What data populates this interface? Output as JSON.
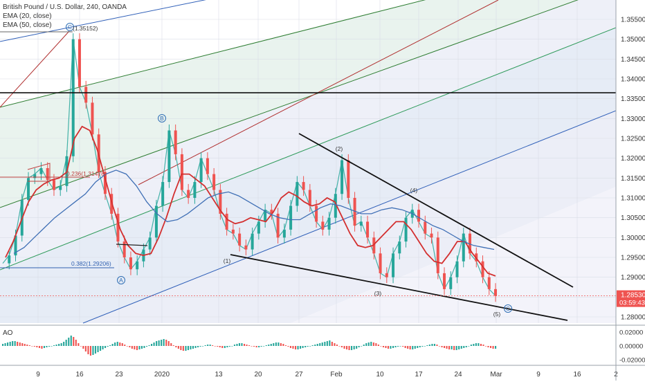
{
  "legend": {
    "title": "British Pound / U.S. Dollar, 240, OANDA",
    "ema20": "EMA (20, close)",
    "ema50": "EMA (50, close)"
  },
  "ao_label": "AO",
  "chart_data": {
    "type": "line",
    "title": "British Pound / U.S. Dollar, 240, OANDA",
    "xlabel": "",
    "ylabel": "",
    "x_tick_labels": [
      "9",
      "16",
      "23",
      "2020",
      "13",
      "20",
      "27",
      "Feb",
      "10",
      "17",
      "24",
      "Mar",
      "9",
      "16",
      "2"
    ],
    "y_tick_labels": [
      "1.35500",
      "1.35000",
      "1.34500",
      "1.34000",
      "1.33500",
      "1.33000",
      "1.32500",
      "1.32000",
      "1.31500",
      "1.31000",
      "1.30500",
      "1.30000",
      "1.29500",
      "1.29000",
      "1.28500",
      "1.28000"
    ],
    "ylim": [
      1.2765,
      1.3595
    ],
    "grid": true,
    "series": [
      {
        "role": "price",
        "color": "#26a69a",
        "values": [
          1.2935,
          1.2955,
          1.3005,
          1.3095,
          1.315,
          1.316,
          1.3175,
          1.3145,
          1.312,
          1.313,
          1.3205,
          1.35,
          1.338,
          1.334,
          1.326,
          1.3165,
          1.311,
          1.306,
          1.299,
          1.295,
          1.292,
          1.294,
          1.297,
          1.3,
          1.308,
          1.314,
          1.327,
          1.321,
          1.312,
          1.31,
          1.314,
          1.32,
          1.316,
          1.312,
          1.306,
          1.302,
          1.301,
          1.298,
          1.297,
          1.301,
          1.304,
          1.307,
          1.306,
          1.3,
          1.302,
          1.308,
          1.314,
          1.312,
          1.308,
          1.304,
          1.302,
          1.305,
          1.311,
          1.3195,
          1.31,
          1.303,
          1.304,
          1.3,
          1.296,
          1.291,
          1.29,
          1.296,
          1.299,
          1.305,
          1.307,
          1.304,
          1.301,
          1.3,
          1.291,
          1.287,
          1.29,
          1.294,
          1.301,
          1.296,
          1.294,
          1.29,
          1.287,
          1.2853
        ]
      },
      {
        "role": "ema20",
        "color": "#d32f2f",
        "values": [
          1.295,
          1.299,
          1.304,
          1.309,
          1.312,
          1.3135,
          1.3145,
          1.315,
          1.3165,
          1.325,
          1.328,
          1.327,
          1.322,
          1.315,
          1.308,
          1.302,
          1.298,
          1.296,
          1.2955,
          1.296,
          1.3,
          1.305,
          1.311,
          1.316,
          1.316,
          1.3145,
          1.313,
          1.31,
          1.307,
          1.3045,
          1.3035,
          1.304,
          1.305,
          1.3045,
          1.304,
          1.3065,
          1.31,
          1.3115,
          1.3105,
          1.309,
          1.308,
          1.3085,
          1.31,
          1.309,
          1.305,
          1.301,
          1.298,
          1.2975,
          1.298,
          1.3,
          1.302,
          1.304,
          1.304,
          1.302,
          1.299,
          1.296,
          1.294,
          1.2935,
          1.296,
          1.299,
          1.299,
          1.296,
          1.2935,
          1.291,
          1.2903
        ]
      },
      {
        "role": "ema50",
        "color": "#3f6fb5",
        "values": [
          1.296,
          1.2975,
          1.3,
          1.3025,
          1.305,
          1.307,
          1.309,
          1.311,
          1.314,
          1.316,
          1.317,
          1.316,
          1.313,
          1.309,
          1.306,
          1.304,
          1.3045,
          1.306,
          1.308,
          1.31,
          1.311,
          1.3115,
          1.3105,
          1.309,
          1.3075,
          1.306,
          1.305,
          1.3045,
          1.3045,
          1.306,
          1.3075,
          1.3085,
          1.308,
          1.307,
          1.306,
          1.306,
          1.307,
          1.3075,
          1.307,
          1.306,
          1.3045,
          1.303,
          1.302,
          1.3005,
          1.299,
          1.298,
          1.2975,
          1.297
        ]
      }
    ],
    "ao_histogram": {
      "y_tick_labels": [
        "0.02000",
        "0.00000",
        "-0.02000"
      ],
      "ylim": [
        -0.026,
        0.026
      ],
      "values": [
        0.003,
        0.004,
        0.005,
        0.006,
        0.007,
        0.007,
        0.006,
        0.005,
        0.004,
        0.003,
        0.002,
        0.001,
        0.0,
        -0.001,
        -0.002,
        -0.003,
        -0.004,
        -0.003,
        -0.002,
        -0.001,
        0.0,
        0.001,
        0.002,
        0.003,
        0.004,
        0.006,
        0.009,
        0.012,
        0.015,
        0.013,
        0.009,
        0.004,
        0.0,
        -0.004,
        -0.008,
        -0.012,
        -0.014,
        -0.013,
        -0.011,
        -0.009,
        -0.007,
        -0.005,
        -0.003,
        -0.001,
        0.001,
        0.003,
        0.005,
        0.006,
        0.005,
        0.004,
        0.002,
        0.0,
        -0.002,
        -0.004,
        -0.005,
        -0.006,
        -0.005,
        -0.004,
        -0.003,
        -0.001,
        0.001,
        0.003,
        0.005,
        0.007,
        0.008,
        0.009,
        0.01,
        0.009,
        0.007,
        0.004,
        0.001,
        -0.002,
        -0.004,
        -0.006,
        -0.007,
        -0.007,
        -0.006,
        -0.005,
        -0.004,
        -0.003,
        -0.002,
        -0.001,
        0.0,
        0.001,
        0.002,
        0.002,
        0.001,
        0.0,
        -0.001,
        -0.002,
        -0.003,
        -0.003,
        -0.002,
        -0.001,
        0.0,
        0.002,
        0.003,
        0.004,
        0.004,
        0.003,
        0.002,
        0.001,
        0.0,
        -0.001,
        -0.002,
        -0.002,
        -0.001,
        0.0,
        0.001,
        0.002,
        0.003,
        0.004,
        0.005,
        0.005,
        0.004,
        0.003,
        0.001,
        -0.001,
        -0.003,
        -0.004,
        -0.005,
        -0.005,
        -0.004,
        -0.003,
        -0.002,
        -0.001,
        0.0,
        0.001,
        0.002,
        0.003,
        0.004,
        0.005,
        0.006,
        0.007,
        0.008,
        0.006,
        0.004,
        0.002,
        0.0,
        -0.002,
        -0.004,
        -0.005,
        -0.006,
        -0.006,
        -0.005,
        -0.004,
        -0.002,
        0.0,
        0.002,
        0.004,
        0.005,
        0.006,
        0.005,
        0.004,
        0.002,
        0.0,
        -0.002,
        -0.003,
        -0.004,
        -0.004,
        -0.003,
        -0.002,
        -0.001,
        0.0,
        -0.001,
        -0.003,
        -0.004,
        -0.005,
        -0.005,
        -0.004,
        -0.003,
        -0.002,
        -0.001,
        0.0,
        0.001,
        0.002,
        0.003,
        0.003,
        0.002,
        0.0,
        -0.002,
        -0.003,
        -0.004,
        -0.005,
        -0.005,
        -0.006,
        -0.006,
        -0.005,
        -0.004,
        -0.003,
        -0.002,
        0.0,
        0.002,
        0.003,
        0.004,
        0.004,
        0.003,
        0.002,
        0.0,
        -0.002,
        -0.003,
        -0.004,
        -0.004
      ]
    },
    "annotations": {
      "waves": [
        "C",
        "B",
        "A",
        "(1)",
        "(2)",
        "(3)",
        "(4)",
        "(5)",
        "C"
      ],
      "fib_labels": [
        "(1.35152)",
        "0.236(1.31478)",
        "0.382(1.29206)"
      ],
      "horizontal_level": 1.3365,
      "last_price": "1.28530",
      "countdown": "03:59:43",
      "last_price_color": "#ef5350"
    }
  }
}
